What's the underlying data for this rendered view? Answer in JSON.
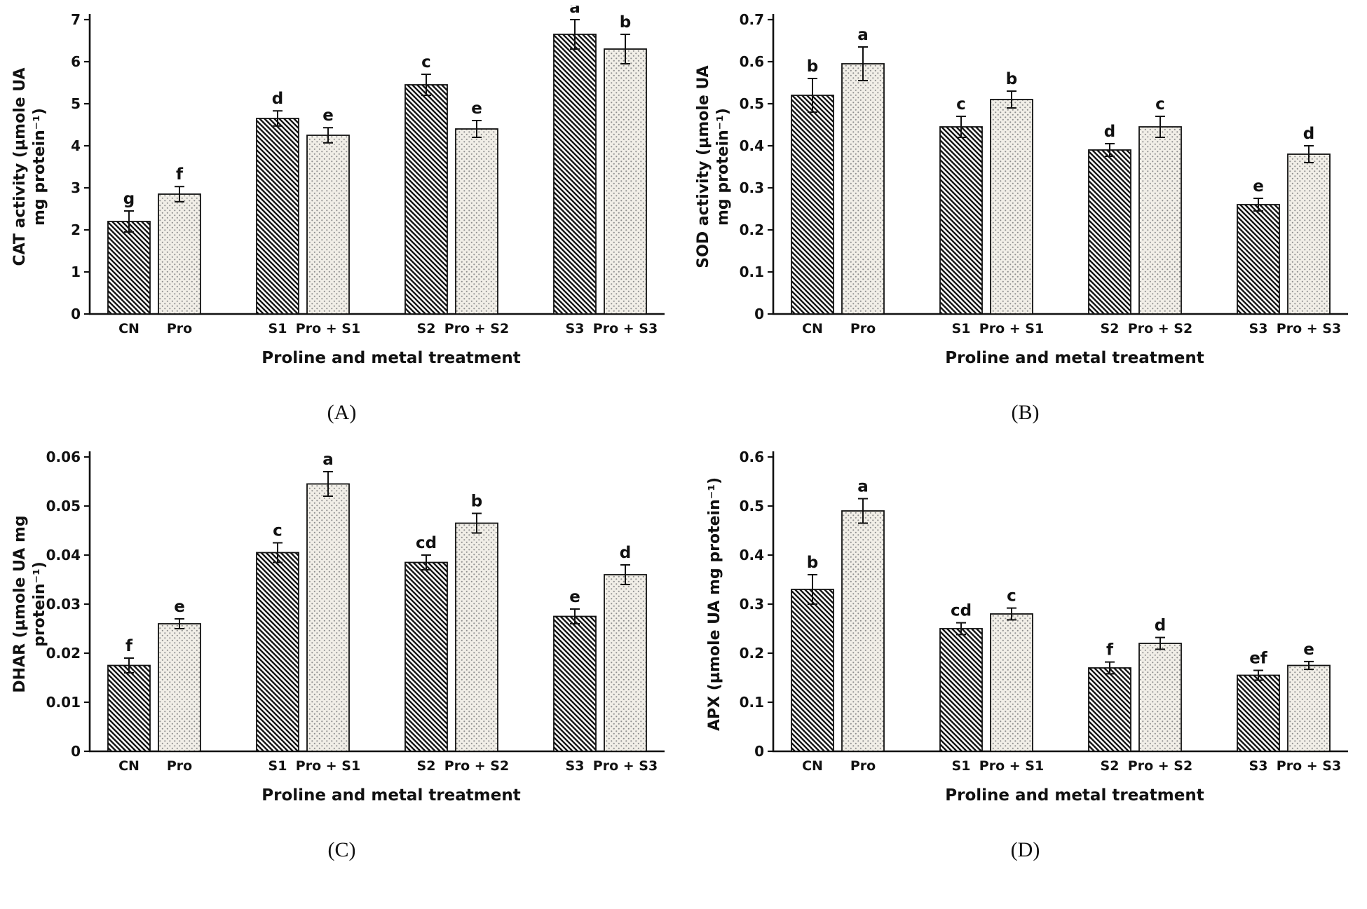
{
  "figure": {
    "background": "#ffffff",
    "axis_color": "#111111",
    "hatch_bg": "#fdfdfd",
    "hatch_line": "#151515",
    "dots_bg": "#f1eee7",
    "dot_color": "#8d8d8d"
  },
  "chart_data": [
    {
      "id": "A",
      "type": "bar",
      "caption": "(A)",
      "ylabel_lines": [
        "CAT activity (µmole UA",
        "mg protein⁻¹)"
      ],
      "xlabel": "Proline and metal treatment",
      "ylim": [
        0,
        7
      ],
      "ytick_labels": [
        "0",
        "1",
        "2",
        "3",
        "4",
        "5",
        "6",
        "7"
      ],
      "grid": false,
      "legend": "none",
      "categories": [
        "CN",
        "Pro",
        "S1",
        "Pro + S1",
        "S2",
        "Pro + S2",
        "S3",
        "Pro + S3"
      ],
      "patterns": [
        "hatch",
        "dots",
        "hatch",
        "dots",
        "hatch",
        "dots",
        "hatch",
        "dots"
      ],
      "values": [
        2.2,
        2.85,
        4.65,
        4.25,
        5.45,
        4.4,
        6.65,
        6.3
      ],
      "errors": [
        0.25,
        0.18,
        0.18,
        0.18,
        0.25,
        0.2,
        0.35,
        0.35
      ],
      "letters": [
        "g",
        "f",
        "d",
        "e",
        "c",
        "e",
        "a",
        "b"
      ]
    },
    {
      "id": "B",
      "type": "bar",
      "caption": "(B)",
      "ylabel_lines": [
        "SOD activity (µmole UA",
        "mg protein⁻¹)"
      ],
      "xlabel": "Proline and metal treatment",
      "ylim": [
        0,
        0.7
      ],
      "ytick_labels": [
        "0",
        "0.1",
        "0.2",
        "0.3",
        "0.4",
        "0.5",
        "0.6",
        "0.7"
      ],
      "grid": false,
      "legend": "none",
      "categories": [
        "CN",
        "Pro",
        "S1",
        "Pro + S1",
        "S2",
        "Pro + S2",
        "S3",
        "Pro + S3"
      ],
      "patterns": [
        "hatch",
        "dots",
        "hatch",
        "dots",
        "hatch",
        "dots",
        "hatch",
        "dots"
      ],
      "values": [
        0.52,
        0.595,
        0.445,
        0.51,
        0.39,
        0.445,
        0.26,
        0.38
      ],
      "errors": [
        0.04,
        0.04,
        0.025,
        0.02,
        0.015,
        0.025,
        0.015,
        0.02
      ],
      "letters": [
        "b",
        "a",
        "c",
        "b",
        "d",
        "c",
        "e",
        "d"
      ]
    },
    {
      "id": "C",
      "type": "bar",
      "caption": "(C)",
      "ylabel_lines": [
        "DHAR (µmole UA mg",
        "protein⁻¹)"
      ],
      "xlabel": "Proline and metal treatment",
      "ylim": [
        0,
        0.06
      ],
      "ytick_labels": [
        "0",
        "0.01",
        "0.02",
        "0.03",
        "0.04",
        "0.05",
        "0.06"
      ],
      "grid": false,
      "legend": "none",
      "categories": [
        "CN",
        "Pro",
        "S1",
        "Pro + S1",
        "S2",
        "Pro + S2",
        "S3",
        "Pro + S3"
      ],
      "patterns": [
        "hatch",
        "dots",
        "hatch",
        "dots",
        "hatch",
        "dots",
        "hatch",
        "dots"
      ],
      "values": [
        0.0175,
        0.026,
        0.0405,
        0.0545,
        0.0385,
        0.0465,
        0.0275,
        0.036
      ],
      "errors": [
        0.0015,
        0.001,
        0.002,
        0.0025,
        0.0015,
        0.002,
        0.0015,
        0.002
      ],
      "letters": [
        "f",
        "e",
        "c",
        "a",
        "cd",
        "b",
        "e",
        "d"
      ]
    },
    {
      "id": "D",
      "type": "bar",
      "caption": "(D)",
      "ylabel_lines": [
        "APX (µmole UA mg protein⁻¹)"
      ],
      "xlabel": "Proline and metal treatment",
      "ylim": [
        0,
        0.6
      ],
      "ytick_labels": [
        "0",
        "0.1",
        "0.2",
        "0.3",
        "0.4",
        "0.5",
        "0.6"
      ],
      "grid": false,
      "legend": "none",
      "categories": [
        "CN",
        "Pro",
        "S1",
        "Pro + S1",
        "S2",
        "Pro + S2",
        "S3",
        "Pro + S3"
      ],
      "patterns": [
        "hatch",
        "dots",
        "hatch",
        "dots",
        "hatch",
        "dots",
        "hatch",
        "dots"
      ],
      "values": [
        0.33,
        0.49,
        0.25,
        0.28,
        0.17,
        0.22,
        0.155,
        0.175
      ],
      "errors": [
        0.03,
        0.025,
        0.012,
        0.012,
        0.012,
        0.012,
        0.01,
        0.008
      ],
      "letters": [
        "b",
        "a",
        "cd",
        "c",
        "f",
        "d",
        "ef",
        "e"
      ]
    }
  ]
}
